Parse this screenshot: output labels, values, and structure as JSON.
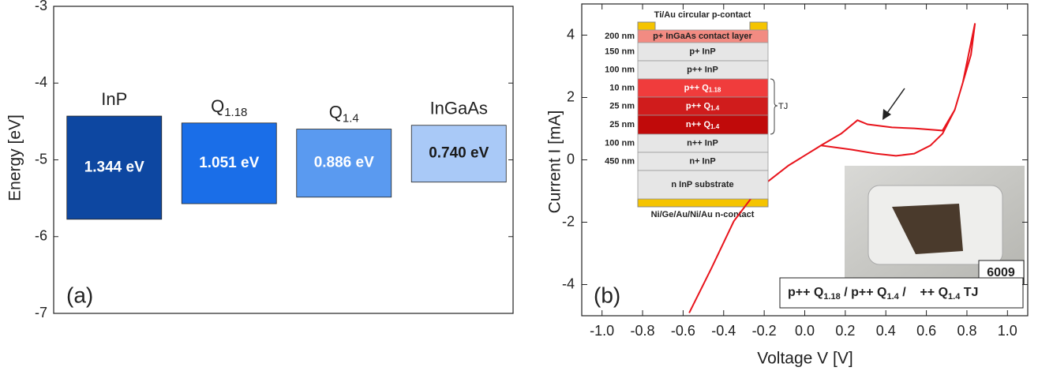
{
  "chart_data": [
    {
      "type": "floating-bar",
      "ylabel": "Energy [eV]",
      "annotation": "(a)",
      "categories": [
        "InP",
        "Q",
        "Q",
        "InGaAs"
      ],
      "category_subscripts": [
        null,
        "1.18",
        "1.4",
        null
      ],
      "top": [
        -4.43,
        -4.52,
        -4.6,
        -4.55
      ],
      "values": [
        1.344,
        1.051,
        0.886,
        0.74
      ],
      "value_labels": [
        "1.344 eV",
        "1.051 eV",
        "0.886 eV",
        "0.740 eV"
      ],
      "colors": [
        "#0d47a1",
        "#1a6ee8",
        "#5a9af0",
        "#a9c9f7"
      ],
      "ylim": [
        -7,
        -3
      ],
      "yticks": [
        -7,
        -6,
        -5,
        -4,
        -3
      ]
    },
    {
      "type": "line",
      "xlabel": "Voltage V [V]",
      "ylabel": "Current I [mA]",
      "annotation": "(b)",
      "color": "#e8141c",
      "x": [
        -0.57,
        -0.46,
        -0.35,
        -0.23,
        -0.08,
        0.06,
        0.08,
        0.23,
        0.35,
        0.45,
        0.54,
        0.62,
        0.68,
        0.74,
        0.78,
        0.82,
        0.84,
        0.78,
        0.74,
        0.68,
        0.54,
        0.43,
        0.31,
        0.26,
        0.18,
        0.08
      ],
      "values": [
        -4.91,
        -3.47,
        -1.97,
        -0.94,
        -0.18,
        0.38,
        0.46,
        0.33,
        0.2,
        0.13,
        0.2,
        0.46,
        0.84,
        1.6,
        2.48,
        3.37,
        4.38,
        2.48,
        1.6,
        0.94,
        1.01,
        1.04,
        1.14,
        1.27,
        0.84,
        0.46
      ],
      "xlim": [
        -1.1,
        1.1
      ],
      "xticks": [
        {
          "value": -1,
          "label": "-1.0"
        },
        -0.8,
        -0.6,
        -0.4,
        -0.2,
        {
          "value": 0,
          "label": "0.0"
        },
        0.2,
        0.4,
        0.6,
        0.8,
        {
          "value": 1,
          "label": "1.0"
        }
      ],
      "ylim": [
        -5,
        5
      ],
      "yticks": [
        -4,
        -2,
        0,
        2,
        4
      ]
    }
  ],
  "layer_stack": {
    "top_contact": "Ti/Au circular p-contact",
    "bottom_contact": "Ni/Ge/Au/Ni/Au n-contact",
    "brace_label": "TJ",
    "layers": [
      {
        "thickness": "200 nm",
        "name": "p+ InGaAs contact layer",
        "color": "#f28b82"
      },
      {
        "thickness": "150 nm",
        "name": "p+ InP",
        "color": "#e6e6e6"
      },
      {
        "thickness": "100 nm",
        "name": "p++ InP",
        "color": "#e6e6e6"
      },
      {
        "thickness": "10 nm",
        "name": "p++ Q",
        "sub": "1.18",
        "color": "#f03c3c"
      },
      {
        "thickness": "25 nm",
        "name": "p++ Q",
        "sub": "1.4",
        "color": "#d01c1c"
      },
      {
        "thickness": "25 nm",
        "name": "n++ Q",
        "sub": "1.4",
        "color": "#c00a0a"
      },
      {
        "thickness": "100 nm",
        "name": "n++ InP",
        "color": "#e6e6e6"
      },
      {
        "thickness": "450 nm",
        "name": "n+ InP",
        "color": "#e6e6e6"
      },
      {
        "name": "n InP substrate",
        "color": "#e6e6e6"
      }
    ]
  },
  "sample_photo": {
    "label": "6009"
  },
  "structure_label": [
    {
      "text": "p++ Q",
      "sub": "1.18"
    },
    {
      "text": " / p++ Q",
      "sub": "1.4"
    },
    {
      "text": " /    ++ Q",
      "sub": "1.4"
    },
    {
      "text": " TJ"
    }
  ]
}
